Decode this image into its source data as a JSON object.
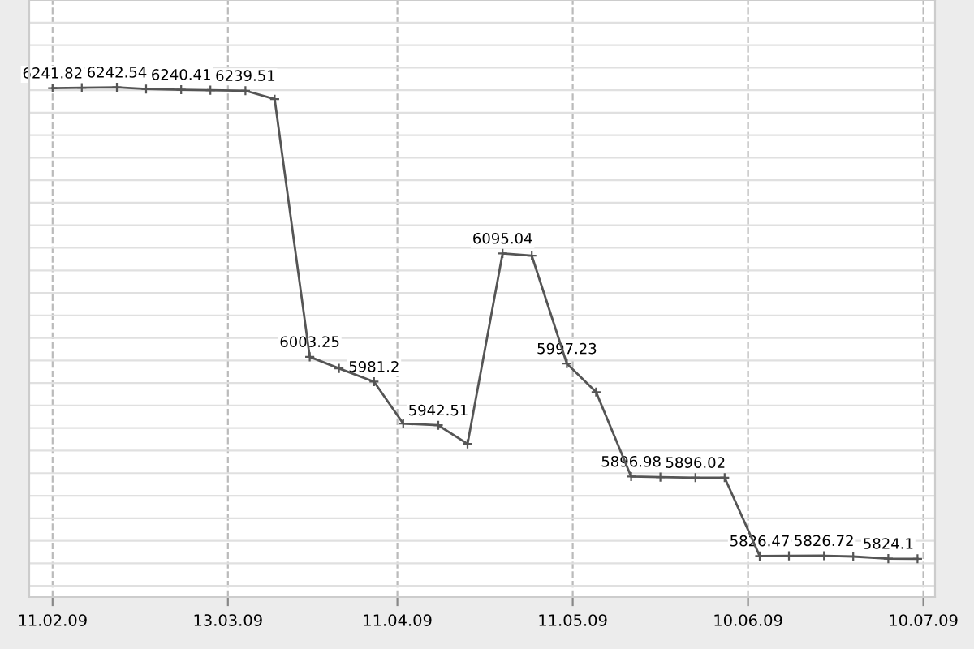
{
  "chart_data": {
    "type": "line",
    "x": [
      "2009-02-11",
      "2009-02-16",
      "2009-02-22",
      "2009-02-27",
      "2009-03-05",
      "2009-03-10",
      "2009-03-16",
      "2009-03-21",
      "2009-03-27",
      "2009-04-01",
      "2009-04-07",
      "2009-04-12",
      "2009-04-18",
      "2009-04-23",
      "2009-04-29",
      "2009-05-04",
      "2009-05-10",
      "2009-05-15",
      "2009-05-21",
      "2009-05-26",
      "2009-06-01",
      "2009-06-06",
      "2009-06-12",
      "2009-06-17",
      "2009-06-23",
      "2009-06-28",
      "2009-07-04",
      "2009-07-09"
    ],
    "series": [
      {
        "color": "#555555",
        "values": [
          6241.82,
          6242.2,
          6242.54,
          6241,
          6240.41,
          6240,
          6239.51,
          6232,
          6003.25,
          5993,
          5981.2,
          5944,
          5942.51,
          5926,
          6095.04,
          6093,
          5997.23,
          5972,
          5896.98,
          5896.5,
          5896.02,
          5896,
          5826.47,
          5826.6,
          5826.72,
          5826,
          5824.1,
          5824
        ],
        "value_labels": [
          "6241.82",
          null,
          "6242.54",
          null,
          "6240.41",
          null,
          "6239.51",
          null,
          "6003.25",
          null,
          "5981.2",
          null,
          "5942.51",
          null,
          "6095.04",
          null,
          "5997.23",
          null,
          "5896.98",
          null,
          "5896.02",
          null,
          "5826.47",
          null,
          "5826.72",
          null,
          "5824.1",
          null
        ]
      }
    ],
    "xlim": [
      "2009-02-07",
      "2009-07-12"
    ],
    "xticks": [
      {
        "value": "2009-02-11",
        "label": "11.02.09"
      },
      {
        "value": "2009-03-13",
        "label": "13.03.09"
      },
      {
        "value": "2009-04-11",
        "label": "11.04.09"
      },
      {
        "value": "2009-05-11",
        "label": "11.05.09"
      },
      {
        "value": "2009-06-10",
        "label": "10.06.09"
      },
      {
        "value": "2009-07-10",
        "label": "10.07.09"
      }
    ],
    "ylim": [
      5790,
      6320
    ],
    "yticks": [
      {
        "value": 5800,
        "label": null
      },
      {
        "value": 5820,
        "label": null
      },
      {
        "value": 5840,
        "label": null
      },
      {
        "value": 5860,
        "label": null
      },
      {
        "value": 5880,
        "label": null
      },
      {
        "value": 5900,
        "label": null
      },
      {
        "value": 5920,
        "label": null
      },
      {
        "value": 5940,
        "label": null
      },
      {
        "value": 5960,
        "label": null
      },
      {
        "value": 5980,
        "label": null
      },
      {
        "value": 6000,
        "label": null
      },
      {
        "value": 6020,
        "label": null
      },
      {
        "value": 6040,
        "label": null
      },
      {
        "value": 6060,
        "label": null
      },
      {
        "value": 6080,
        "label": null
      },
      {
        "value": 6100,
        "label": null
      },
      {
        "value": 6120,
        "label": null
      },
      {
        "value": 6140,
        "label": null
      },
      {
        "value": 6160,
        "label": null
      },
      {
        "value": 6180,
        "label": null
      },
      {
        "value": 6200,
        "label": null
      },
      {
        "value": 6220,
        "label": null
      },
      {
        "value": 6240,
        "label": null
      },
      {
        "value": 6260,
        "label": null
      },
      {
        "value": 6280,
        "label": null
      },
      {
        "value": 6300,
        "label": null
      }
    ],
    "tick_labels": "x",
    "grid": true,
    "marker": "cross",
    "line_style": "solid"
  }
}
